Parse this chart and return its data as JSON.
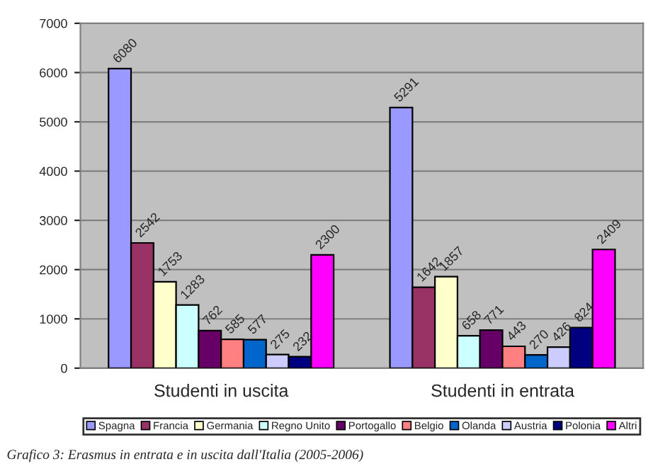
{
  "chart_data": {
    "type": "bar",
    "categories": [
      "Studenti in uscita",
      "Studenti in entrata"
    ],
    "series": [
      {
        "name": "Spagna",
        "color": "#9999ff",
        "values": [
          6080,
          5291
        ]
      },
      {
        "name": "Francia",
        "color": "#993366",
        "values": [
          2542,
          1642
        ]
      },
      {
        "name": "Germania",
        "color": "#ffffcc",
        "values": [
          1753,
          1857
        ]
      },
      {
        "name": "Regno Unito",
        "color": "#ccffff",
        "values": [
          1283,
          658
        ]
      },
      {
        "name": "Portogallo",
        "color": "#660066",
        "values": [
          762,
          771
        ]
      },
      {
        "name": "Belgio",
        "color": "#ff8080",
        "values": [
          585,
          443
        ]
      },
      {
        "name": "Olanda",
        "color": "#0066cc",
        "values": [
          577,
          270
        ]
      },
      {
        "name": "Austria",
        "color": "#ccccff",
        "values": [
          275,
          426
        ]
      },
      {
        "name": "Polonia",
        "color": "#000080",
        "values": [
          232,
          824
        ]
      },
      {
        "name": "Altri",
        "color": "#ff00ff",
        "values": [
          2300,
          2409
        ]
      }
    ],
    "ylim": [
      0,
      7000
    ],
    "yticks": [
      0,
      1000,
      2000,
      3000,
      4000,
      5000,
      6000,
      7000
    ],
    "grid": "y",
    "legend": "bottom",
    "data_labels": true,
    "annotations": [
      "Grafico 3: Erasmus in entrata e in uscita dall'Italia (2005-2006)"
    ]
  }
}
